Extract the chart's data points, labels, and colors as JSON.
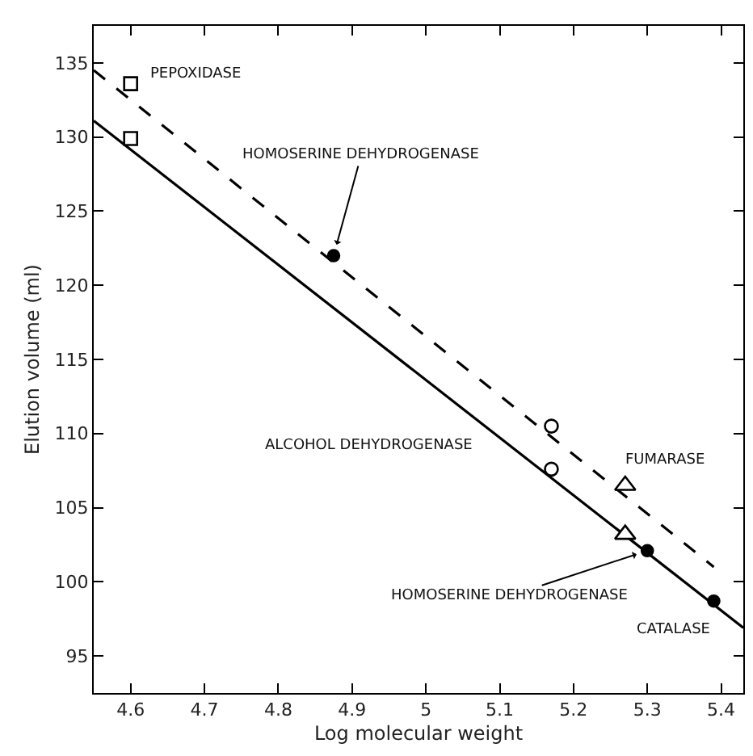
{
  "chart_data": {
    "type": "scatter",
    "xlabel": "Log molecular weight",
    "ylabel": "Elution volume (ml)",
    "xlim": [
      4.55,
      5.43
    ],
    "ylim": [
      92.5,
      137.5
    ],
    "xticks": [
      4.6,
      4.7,
      4.8,
      4.9,
      5.0,
      5.1,
      5.2,
      5.3,
      5.4
    ],
    "yticks": [
      95,
      100,
      105,
      110,
      115,
      120,
      125,
      130,
      135
    ],
    "series": [
      {
        "type": "line",
        "x": [
          4.55,
          5.39
        ],
        "values": [
          134.5,
          101.0
        ],
        "color": "#000000",
        "line_style": "dashed",
        "marker": "none"
      },
      {
        "type": "line",
        "x": [
          4.55,
          5.43
        ],
        "values": [
          131.1,
          96.9
        ],
        "color": "#000000",
        "line_style": "solid",
        "marker": "none"
      },
      {
        "x": [
          4.6,
          4.6
        ],
        "values": [
          133.6,
          129.9
        ],
        "color": "#ffffff",
        "marker": "square"
      },
      {
        "x": [
          5.17,
          5.17
        ],
        "values": [
          110.5,
          107.6
        ],
        "color": "#ffffff",
        "marker": "circle"
      },
      {
        "x": [
          5.27,
          5.27
        ],
        "values": [
          106.5,
          103.2
        ],
        "color": "#ffffff",
        "marker": "triangle"
      },
      {
        "x": [
          4.875,
          5.3,
          5.39
        ],
        "values": [
          122.0,
          102.1,
          98.7
        ],
        "color": "#000000",
        "marker": "circle"
      }
    ],
    "annotations": [
      {
        "text": "PEPOXIDASE",
        "x": 4.6,
        "y": 133.6
      },
      {
        "text": "HOMOSERINE DEHYDROGENASE",
        "x": 4.875,
        "y": 122.0
      },
      "ALCOHOL DEHYDROGENASE",
      {
        "text": "FUMARASE",
        "x": 5.27,
        "y": 106.5
      },
      {
        "text": "HOMOSERINE DEHYDROGENASE",
        "x": 5.3,
        "y": 102.1
      },
      {
        "text": "CATALASE",
        "x": 5.39,
        "y": 98.7
      }
    ]
  }
}
